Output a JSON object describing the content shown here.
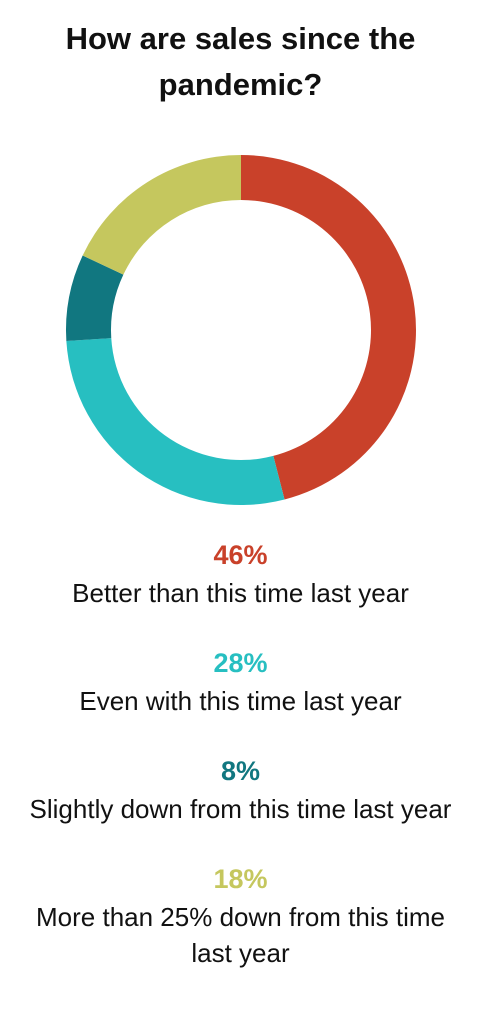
{
  "chart_data": {
    "type": "donut",
    "title": "How are sales since the pandemic?",
    "categories": [
      "Better than this time last year",
      "Even with this time last year",
      "Slightly down from this time last year",
      "More than 25% down from this time last year"
    ],
    "values": [
      46,
      28,
      8,
      18
    ],
    "value_labels": [
      "46%",
      "28%",
      "8%",
      "18%"
    ],
    "colors": [
      "#c9412a",
      "#27bfc1",
      "#117780",
      "#c5c75e"
    ]
  }
}
